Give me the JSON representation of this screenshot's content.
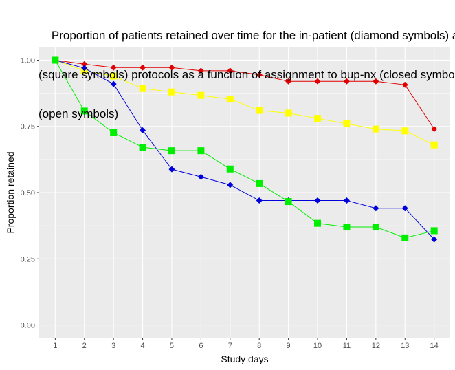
{
  "chart_data": {
    "type": "line",
    "title_lines": [
      "    Proportion of patients retained over time for the in-patient (diamond symbols) and out-patient",
      "(square symbols) protocols as a function of assignment to bup-nx (closed symbols) or clonidine",
      "(open symbols)"
    ],
    "xlabel": "Study days",
    "ylabel": "Proportion retained",
    "x": [
      1,
      2,
      3,
      4,
      5,
      6,
      7,
      8,
      9,
      10,
      11,
      12,
      13,
      14
    ],
    "xlim": [
      0.45,
      14.55
    ],
    "ylim": [
      -0.048,
      1.048
    ],
    "y_ticks": [
      "0.00",
      "0.25",
      "0.50",
      "0.75",
      "1.00"
    ],
    "grid": true,
    "legend": "none",
    "colors": {
      "panel": "#ebebeb",
      "grid": "#ffffff"
    },
    "series": [
      {
        "marker": "diamond",
        "color": "#e00000",
        "values": [
          1.0,
          0.985,
          0.972,
          0.972,
          0.972,
          0.96,
          0.96,
          0.945,
          0.92,
          0.92,
          0.92,
          0.92,
          0.907,
          0.74
        ]
      },
      {
        "marker": "square",
        "color": "#ffff00",
        "values": [
          1.0,
          0.96,
          0.94,
          0.893,
          0.88,
          0.867,
          0.853,
          0.81,
          0.8,
          0.78,
          0.76,
          0.74,
          0.733,
          0.68
        ]
      },
      {
        "marker": "diamond",
        "color": "#0000dd",
        "values": [
          1.0,
          0.97,
          0.91,
          0.735,
          0.588,
          0.559,
          0.529,
          0.47,
          0.47,
          0.47,
          0.47,
          0.441,
          0.441,
          0.323
        ]
      },
      {
        "marker": "square",
        "color": "#00ee00",
        "values": [
          1.0,
          0.808,
          0.726,
          0.671,
          0.658,
          0.658,
          0.589,
          0.534,
          0.466,
          0.384,
          0.37,
          0.37,
          0.329,
          0.356
        ]
      }
    ]
  }
}
